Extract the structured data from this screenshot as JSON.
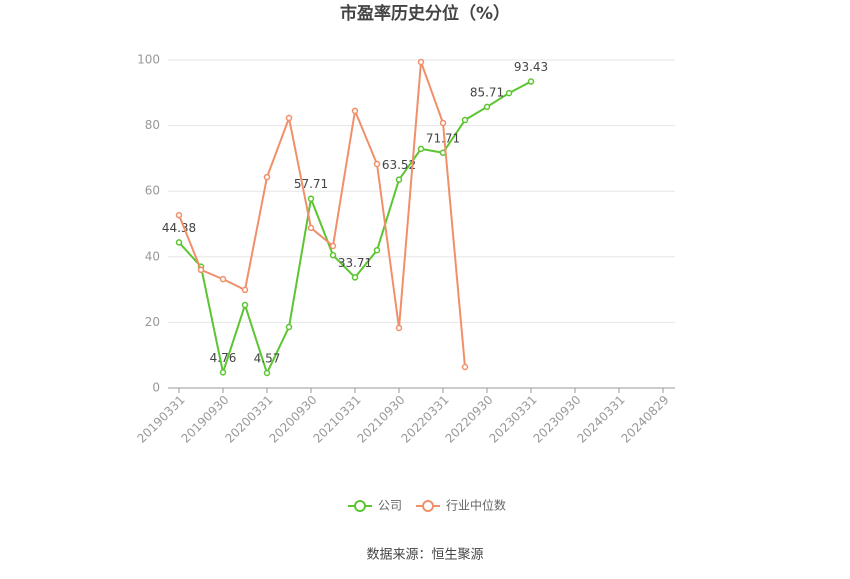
{
  "chart_data": {
    "type": "line",
    "title": "市盈率历史分位（%）",
    "categories": [
      "20190331",
      null,
      "20190930",
      null,
      "20200331",
      null,
      "20200930",
      null,
      "20210331",
      null,
      "20210930",
      null,
      "20220331",
      null,
      "20220930",
      null,
      "20230331",
      null,
      "20230930",
      null,
      "20240331",
      null,
      "20240829"
    ],
    "series": [
      {
        "name": "公司",
        "color": "#5cc531",
        "values": [
          44.38,
          37,
          4.76,
          25.3,
          4.57,
          18.6,
          57.71,
          40.5,
          33.71,
          42,
          63.52,
          72.9,
          71.71,
          81.7,
          85.71,
          89.9,
          93.43,
          null,
          null,
          null,
          null,
          null,
          null
        ],
        "value_labels": [
          "44.38",
          null,
          "4.76",
          null,
          "4.57",
          null,
          "57.71",
          null,
          "33.71",
          null,
          "63.52",
          null,
          "71.71",
          null,
          "85.71",
          null,
          "93.43",
          null,
          null,
          null,
          null,
          null,
          null
        ]
      },
      {
        "name": "行业中位数",
        "color": "#f0906a",
        "values": [
          52.7,
          36,
          33.2,
          29.9,
          64.3,
          82.3,
          48.8,
          43.3,
          84.5,
          68.3,
          18.3,
          99.4,
          80.8,
          6.4,
          null,
          null,
          null,
          null,
          null,
          null,
          null,
          null,
          null
        ]
      }
    ],
    "ylim": [
      0,
      100
    ],
    "yticks": [
      0,
      20,
      40,
      60,
      80,
      100
    ],
    "grid": true,
    "source": "数据来源：恒生聚源"
  }
}
